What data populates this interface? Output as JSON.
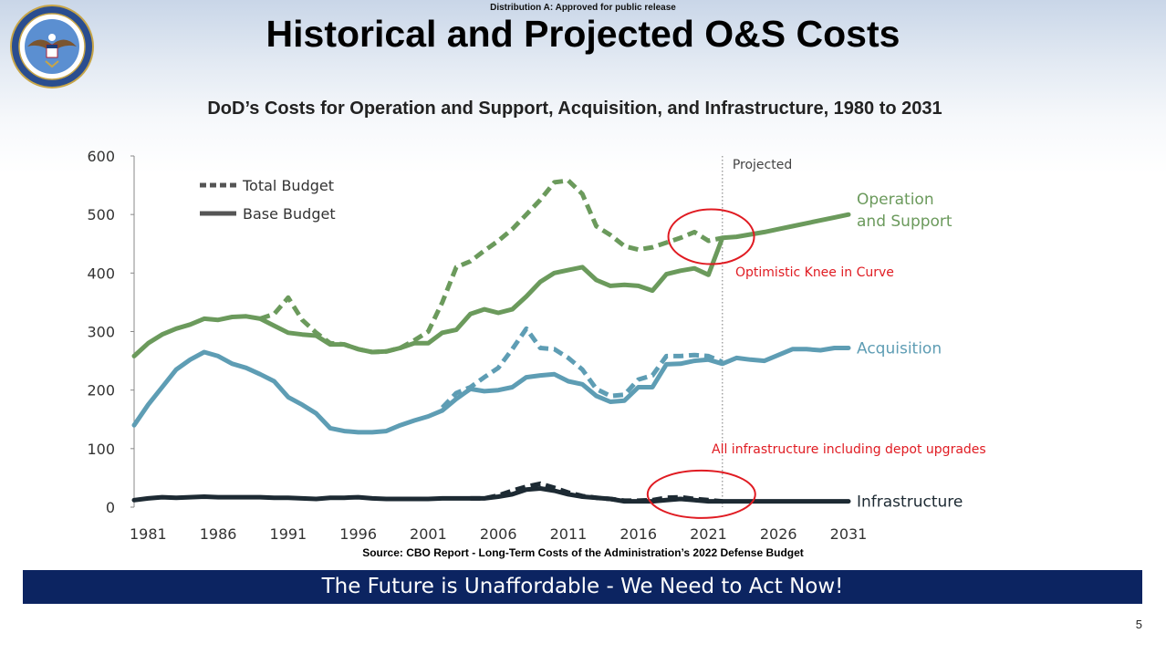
{
  "distribution_note": "Distribution A: Approved for public release",
  "slide_title": "Historical and Projected O&S Costs",
  "seal": {
    "icon": "dod-seal-icon",
    "color": "#2a4d8f"
  },
  "footer_banner": "The Future is Unaffordable - We Need to Act Now!",
  "page_number": "5",
  "source_note": "Source: CBO Report - Long-Term Costs of the Administration’s 2022 Defense Budget",
  "colors": {
    "os": "#6b9a5c",
    "acq": "#5e9db4",
    "infra": "#1d2a33",
    "annotation": "#e01b22",
    "banner": "#0c2461"
  },
  "chart_data": {
    "type": "line",
    "title": "DoD’s Costs for Operation and Support, Acquisition, and Infrastructure, 1980 to 2031",
    "xlabel": "",
    "ylabel": "",
    "xlim": [
      1980,
      2031
    ],
    "ylim": [
      0,
      600
    ],
    "yticks": [
      0,
      100,
      200,
      300,
      400,
      500,
      600
    ],
    "xticks": [
      1981,
      1986,
      1991,
      1996,
      2001,
      2006,
      2011,
      2016,
      2021,
      2026,
      2031
    ],
    "projected_from": 2022,
    "projected_label": "Projected",
    "legend": [
      {
        "label": "Total Budget",
        "style": "dashed"
      },
      {
        "label": "Base Budget",
        "style": "solid"
      }
    ],
    "series": [
      {
        "name": "Operation and Support",
        "label_lines": [
          "Operation",
          "and Support"
        ],
        "color": "#6b9a5c",
        "base": {
          "x": [
            1980,
            1981,
            1982,
            1983,
            1984,
            1985,
            1986,
            1987,
            1988,
            1989,
            1990,
            1991,
            1992,
            1993,
            1994,
            1995,
            1996,
            1997,
            1998,
            1999,
            2000,
            2001,
            2002,
            2003,
            2004,
            2005,
            2006,
            2007,
            2008,
            2009,
            2010,
            2011,
            2012,
            2013,
            2014,
            2015,
            2016,
            2017,
            2018,
            2019,
            2020,
            2021,
            2022,
            2023,
            2024,
            2025,
            2026,
            2027,
            2028,
            2029,
            2030,
            2031
          ],
          "y": [
            258,
            280,
            295,
            305,
            312,
            322,
            320,
            325,
            326,
            322,
            310,
            298,
            295,
            293,
            278,
            278,
            270,
            265,
            266,
            272,
            280,
            280,
            298,
            303,
            330,
            338,
            332,
            338,
            360,
            385,
            400,
            405,
            410,
            388,
            378,
            380,
            378,
            370,
            398,
            404,
            408,
            397,
            460,
            462,
            466,
            470,
            475,
            480,
            485,
            490,
            495,
            500
          ]
        },
        "total": {
          "x": [
            1989,
            1990,
            1991,
            1992,
            1993,
            1994,
            1995,
            1996,
            1997,
            1998,
            1999,
            2000,
            2001,
            2002,
            2003,
            2004,
            2005,
            2006,
            2007,
            2008,
            2009,
            2010,
            2011,
            2012,
            2013,
            2014,
            2015,
            2016,
            2017,
            2018,
            2019,
            2020,
            2021,
            2022
          ],
          "y": [
            322,
            330,
            358,
            320,
            298,
            280,
            278,
            270,
            265,
            266,
            272,
            285,
            300,
            350,
            410,
            420,
            438,
            455,
            475,
            500,
            525,
            555,
            558,
            535,
            480,
            465,
            446,
            440,
            444,
            452,
            460,
            470,
            455,
            460
          ]
        }
      },
      {
        "name": "Acquisition",
        "label_lines": [
          "Acquisition"
        ],
        "color": "#5e9db4",
        "base": {
          "x": [
            1980,
            1981,
            1982,
            1983,
            1984,
            1985,
            1986,
            1987,
            1988,
            1989,
            1990,
            1991,
            1992,
            1993,
            1994,
            1995,
            1996,
            1997,
            1998,
            1999,
            2000,
            2001,
            2002,
            2003,
            2004,
            2005,
            2006,
            2007,
            2008,
            2009,
            2010,
            2011,
            2012,
            2013,
            2014,
            2015,
            2016,
            2017,
            2018,
            2019,
            2020,
            2021,
            2022,
            2023,
            2024,
            2025,
            2026,
            2027,
            2028,
            2029,
            2030,
            2031
          ],
          "y": [
            140,
            175,
            205,
            235,
            252,
            265,
            258,
            245,
            238,
            227,
            215,
            188,
            175,
            160,
            135,
            130,
            128,
            128,
            130,
            140,
            148,
            155,
            165,
            185,
            202,
            198,
            200,
            205,
            222,
            225,
            227,
            215,
            210,
            190,
            180,
            182,
            205,
            205,
            244,
            245,
            250,
            252,
            245,
            255,
            252,
            250,
            260,
            270,
            270,
            268,
            272,
            272
          ]
        },
        "total": {
          "x": [
            2002,
            2003,
            2004,
            2005,
            2006,
            2007,
            2008,
            2009,
            2010,
            2011,
            2012,
            2013,
            2014,
            2015,
            2016,
            2017,
            2018,
            2019,
            2020,
            2021,
            2022
          ],
          "y": [
            170,
            195,
            205,
            222,
            238,
            270,
            305,
            272,
            270,
            255,
            235,
            202,
            190,
            192,
            218,
            225,
            258,
            258,
            260,
            258,
            248
          ]
        }
      },
      {
        "name": "Infrastructure",
        "label_lines": [
          "Infrastructure"
        ],
        "color": "#1d2a33",
        "base": {
          "x": [
            1980,
            1981,
            1982,
            1983,
            1984,
            1985,
            1986,
            1987,
            1988,
            1989,
            1990,
            1991,
            1992,
            1993,
            1994,
            1995,
            1996,
            1997,
            1998,
            1999,
            2000,
            2001,
            2002,
            2003,
            2004,
            2005,
            2006,
            2007,
            2008,
            2009,
            2010,
            2011,
            2012,
            2013,
            2014,
            2015,
            2016,
            2017,
            2018,
            2019,
            2020,
            2021,
            2022,
            2023,
            2024,
            2025,
            2026,
            2027,
            2028,
            2029,
            2030,
            2031
          ],
          "y": [
            12,
            15,
            17,
            16,
            17,
            18,
            17,
            17,
            17,
            17,
            16,
            16,
            15,
            14,
            16,
            16,
            17,
            15,
            14,
            14,
            14,
            14,
            15,
            15,
            15,
            15,
            18,
            22,
            30,
            32,
            28,
            22,
            18,
            16,
            14,
            10,
            10,
            10,
            12,
            14,
            12,
            10,
            10,
            10,
            10,
            10,
            10,
            10,
            10,
            10,
            10,
            10
          ]
        },
        "total": {
          "x": [
            2004,
            2005,
            2006,
            2007,
            2008,
            2009,
            2010,
            2011,
            2012,
            2013,
            2014,
            2015,
            2016,
            2017,
            2018,
            2019,
            2020,
            2021,
            2022
          ],
          "y": [
            15,
            15,
            20,
            28,
            35,
            40,
            33,
            25,
            19,
            16,
            14,
            11,
            11,
            12,
            16,
            17,
            14,
            12,
            10
          ]
        }
      }
    ],
    "annotations": [
      {
        "text": "Optimistic Knee in Curve",
        "center_x": 2021.2,
        "center_y": 462
      },
      {
        "text": "All infrastructure including depot upgrades",
        "center_x": 2020.5,
        "center_y": 22
      }
    ]
  }
}
